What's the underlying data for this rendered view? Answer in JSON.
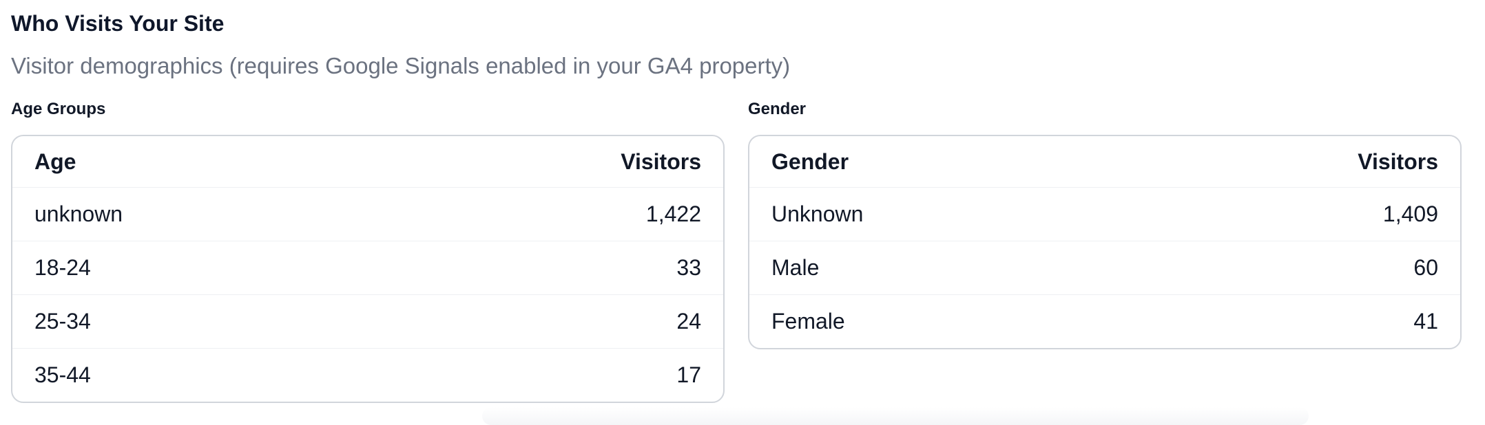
{
  "section": {
    "title": "Who Visits Your Site",
    "subtitle": "Visitor demographics (requires Google Signals enabled in your GA4 property)"
  },
  "age_panel": {
    "label": "Age Groups",
    "columns": [
      "Age",
      "Visitors"
    ],
    "rows": [
      {
        "group": "unknown",
        "visitors": "1,422"
      },
      {
        "group": "18-24",
        "visitors": "33"
      },
      {
        "group": "25-34",
        "visitors": "24"
      },
      {
        "group": "35-44",
        "visitors": "17"
      }
    ]
  },
  "gender_panel": {
    "label": "Gender",
    "columns": [
      "Gender",
      "Visitors"
    ],
    "rows": [
      {
        "group": "Unknown",
        "visitors": "1,409"
      },
      {
        "group": "Male",
        "visitors": "60"
      },
      {
        "group": "Female",
        "visitors": "41"
      }
    ]
  },
  "colors": {
    "text": "#111827",
    "muted": "#6b7280",
    "border": "#d1d5db"
  }
}
